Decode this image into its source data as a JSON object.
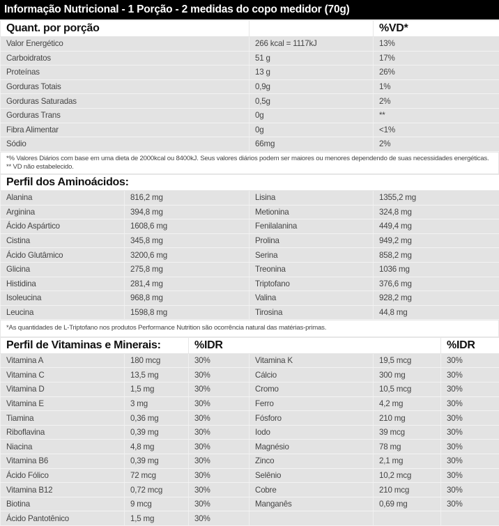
{
  "title": "Informação Nutricional - 1 Porção - 2 medidas do copo medidor (70g)",
  "nutrition": {
    "header": {
      "label": "Quant. por porção",
      "amount": "",
      "dv": "%VD*"
    },
    "rows": [
      {
        "name": "Valor Energético",
        "amount": "266 kcal = 1117kJ",
        "dv": "13%"
      },
      {
        "name": "Carboidratos",
        "amount": "51 g",
        "dv": "17%"
      },
      {
        "name": "Proteínas",
        "amount": "13 g",
        "dv": "26%"
      },
      {
        "name": "Gorduras Totais",
        "amount": "0,9g",
        "dv": "1%"
      },
      {
        "name": "Gorduras Saturadas",
        "amount": "0,5g",
        "dv": "2%"
      },
      {
        "name": "Gorduras Trans",
        "amount": "0g",
        "dv": "**"
      },
      {
        "name": "Fibra Alimentar",
        "amount": "0g",
        "dv": "<1%"
      },
      {
        "name": "Sódio",
        "amount": "66mg",
        "dv": "2%"
      }
    ],
    "footnote": "*% Valores Diários com base em uma dieta de 2000kcal ou 8400kJ. Seus valores diários podem ser maiores ou menores dependendo de suas necessidades energéticas. ** VD não estabelecido."
  },
  "amino": {
    "header": "Perfil dos Aminoácidos:",
    "rows": [
      {
        "n1": "Alanina",
        "v1": "816,2 mg",
        "n2": "Lisina",
        "v2": "1355,2 mg"
      },
      {
        "n1": "Arginina",
        "v1": "394,8 mg",
        "n2": "Metionina",
        "v2": "324,8 mg"
      },
      {
        "n1": "Ácido Aspártico",
        "v1": "1608,6 mg",
        "n2": "Fenilalanina",
        "v2": "449,4 mg"
      },
      {
        "n1": "Cistina",
        "v1": "345,8 mg",
        "n2": "Prolina",
        "v2": "949,2 mg"
      },
      {
        "n1": "Ácido Glutâmico",
        "v1": "3200,6 mg",
        "n2": "Serina",
        "v2": "858,2 mg"
      },
      {
        "n1": "Glicina",
        "v1": "275,8 mg",
        "n2": "Treonina",
        "v2": "1036 mg"
      },
      {
        "n1": "Histidina",
        "v1": "281,4 mg",
        "n2": "Triptofano",
        "v2": "376,6 mg"
      },
      {
        "n1": "Isoleucina",
        "v1": "968,8 mg",
        "n2": "Valina",
        "v2": "928,2 mg"
      },
      {
        "n1": "Leucina",
        "v1": "1598,8 mg",
        "n2": "Tirosina",
        "v2": "44,8 mg"
      }
    ],
    "footnote": "*As quantidades de L-Triptofano nos produtos Performance Nutrition são ocorrência natural das matérias-primas."
  },
  "vitamins": {
    "header": "Perfil de Vitaminas e Minerais:",
    "idr_label_1": "%IDR",
    "idr_label_2": "%IDR",
    "rows": [
      {
        "n1": "Vitamina A",
        "v1": "180 mcg",
        "p1": "30%",
        "n2": "Vitamina K",
        "v2": "19,5 mcg",
        "p2": "30%"
      },
      {
        "n1": "Vitamina C",
        "v1": "13,5 mg",
        "p1": "30%",
        "n2": "Cálcio",
        "v2": "300 mg",
        "p2": "30%"
      },
      {
        "n1": "Vitamina D",
        "v1": "1,5 mg",
        "p1": "30%",
        "n2": "Cromo",
        "v2": "10,5 mcg",
        "p2": "30%"
      },
      {
        "n1": "Vitamina E",
        "v1": "3 mg",
        "p1": "30%",
        "n2": "Ferro",
        "v2": "4,2 mg",
        "p2": "30%"
      },
      {
        "n1": "Tiamina",
        "v1": "0,36 mg",
        "p1": "30%",
        "n2": "Fósforo",
        "v2": "210 mg",
        "p2": "30%"
      },
      {
        "n1": "Riboflavina",
        "v1": "0,39 mg",
        "p1": "30%",
        "n2": "Iodo",
        "v2": "39 mcg",
        "p2": "30%"
      },
      {
        "n1": "Niacina",
        "v1": "4,8 mg",
        "p1": "30%",
        "n2": "Magnésio",
        "v2": "78 mg",
        "p2": "30%"
      },
      {
        "n1": "Vitamina B6",
        "v1": "0,39 mg",
        "p1": "30%",
        "n2": "Zinco",
        "v2": "2,1 mg",
        "p2": "30%"
      },
      {
        "n1": "Ácido Fólico",
        "v1": "72 mcg",
        "p1": "30%",
        "n2": "Selênio",
        "v2": "10,2 mcg",
        "p2": "30%"
      },
      {
        "n1": "Vitamina B12",
        "v1": "0,72 mcg",
        "p1": "30%",
        "n2": "Cobre",
        "v2": "210 mcg",
        "p2": "30%"
      },
      {
        "n1": "Biotina",
        "v1": "9 mcg",
        "p1": "30%",
        "n2": "Manganês",
        "v2": "0,69 mg",
        "p2": "30%"
      },
      {
        "n1": "Ácido Pantotênico",
        "v1": "1,5 mg",
        "p1": "30%",
        "n2": "",
        "v2": "",
        "p2": ""
      }
    ]
  }
}
